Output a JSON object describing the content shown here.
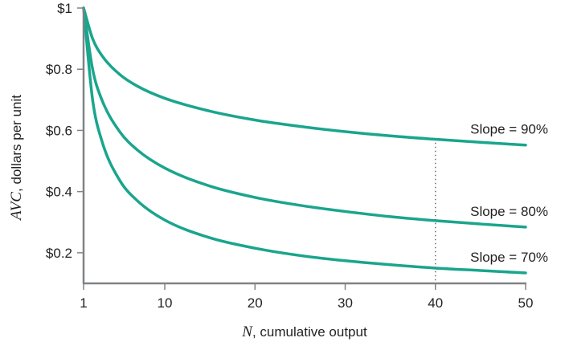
{
  "chart_data": {
    "type": "line",
    "xlabel_var": "N",
    "xlabel_text": ", cumulative output",
    "ylabel_var": "AVC",
    "ylabel_text": ", dollars per unit",
    "xlim": [
      1,
      50
    ],
    "ylim": [
      0.1,
      1.0
    ],
    "x_ticks": [
      1,
      10,
      20,
      30,
      40,
      50
    ],
    "x_tick_labels": [
      "1",
      "10",
      "20",
      "30",
      "40",
      "50"
    ],
    "y_ticks": [
      0.2,
      0.4,
      0.6,
      0.8,
      1.0
    ],
    "y_tick_labels": [
      "$0.2",
      "$0.4",
      "$0.6",
      "$0.8",
      "$1"
    ],
    "grid": false,
    "reference_line": {
      "x": 40,
      "y_from": 0.1,
      "y_to": 0.56,
      "style": "dotted"
    },
    "line_color": "#1aa58d",
    "series": [
      {
        "name": "Slope = 90%",
        "x": [
          1,
          2,
          3,
          5,
          7,
          10,
          15,
          20,
          25,
          30,
          35,
          40,
          45,
          50
        ],
        "y": [
          1.0,
          0.9,
          0.846,
          0.783,
          0.744,
          0.705,
          0.663,
          0.634,
          0.613,
          0.596,
          0.582,
          0.571,
          0.561,
          0.552
        ]
      },
      {
        "name": "Slope = 80%",
        "x": [
          1,
          2,
          3,
          5,
          7,
          10,
          15,
          20,
          25,
          30,
          35,
          40,
          45,
          50
        ],
        "y": [
          1.0,
          0.8,
          0.702,
          0.596,
          0.535,
          0.477,
          0.418,
          0.381,
          0.355,
          0.335,
          0.318,
          0.305,
          0.294,
          0.284
        ]
      },
      {
        "name": "Slope = 70%",
        "x": [
          1,
          2,
          3,
          5,
          7,
          10,
          15,
          20,
          25,
          30,
          35,
          40,
          45,
          50
        ],
        "y": [
          1.0,
          0.7,
          0.568,
          0.437,
          0.369,
          0.307,
          0.249,
          0.215,
          0.191,
          0.174,
          0.161,
          0.15,
          0.142,
          0.134
        ]
      }
    ]
  }
}
